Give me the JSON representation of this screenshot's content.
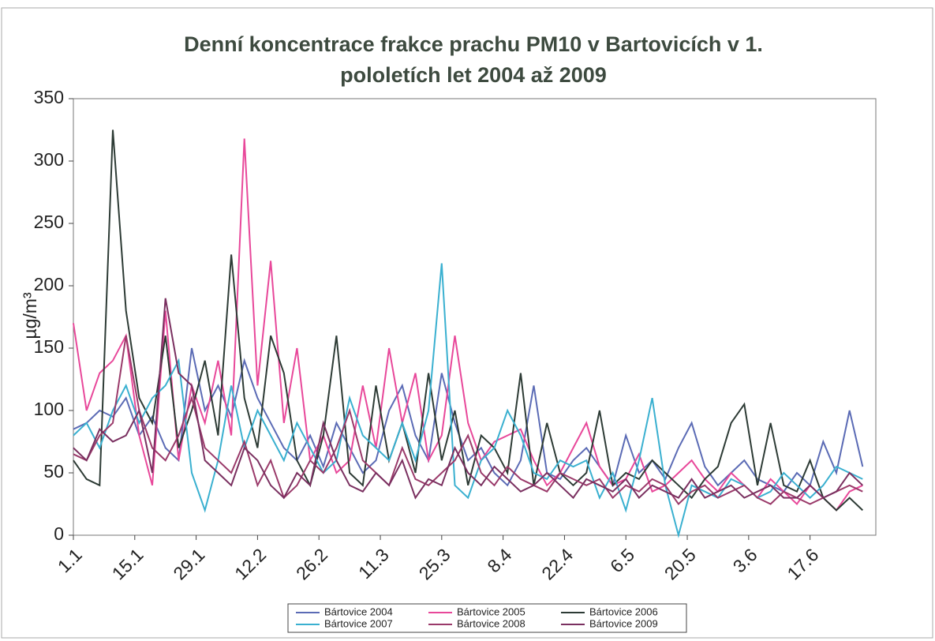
{
  "chart_data": {
    "type": "line",
    "title": [
      "Denní koncentrace frakce prachu PM10 v Bartovicích   v 1.",
      "pololetích let  2004 až 2009"
    ],
    "y_label": "µg/m³",
    "x": [
      1,
      4,
      7,
      10,
      13,
      16,
      19,
      22,
      25,
      28,
      31,
      34,
      37,
      40,
      43,
      46,
      49,
      52,
      55,
      58,
      61,
      64,
      67,
      70,
      73,
      76,
      79,
      82,
      85,
      88,
      91,
      94,
      97,
      100,
      103,
      106,
      109,
      112,
      115,
      118,
      121,
      124,
      127,
      130,
      133,
      136,
      139,
      142,
      145,
      148,
      151,
      154,
      157,
      160,
      163,
      166,
      169,
      172,
      175,
      178,
      181
    ],
    "xlim": [
      1,
      184
    ],
    "xticks": [
      {
        "value": 1,
        "label": "1.1"
      },
      {
        "value": 15,
        "label": "15.1"
      },
      {
        "value": 29,
        "label": "29.1"
      },
      {
        "value": 43,
        "label": "12.2"
      },
      {
        "value": 57,
        "label": "26.2"
      },
      {
        "value": 71,
        "label": "11.3"
      },
      {
        "value": 85,
        "label": "25.3"
      },
      {
        "value": 99,
        "label": "8.4"
      },
      {
        "value": 113,
        "label": "22.4"
      },
      {
        "value": 127,
        "label": "6.5"
      },
      {
        "value": 141,
        "label": "20.5"
      },
      {
        "value": 155,
        "label": "3.6"
      },
      {
        "value": 169,
        "label": "17.6"
      }
    ],
    "ylim": [
      0,
      350
    ],
    "yticks": [
      0,
      50,
      100,
      150,
      200,
      250,
      300,
      350
    ],
    "series": [
      {
        "name": "Bártovice 2004",
        "color": "#5b6bb5",
        "values": [
          85,
          90,
          100,
          95,
          110,
          80,
          95,
          70,
          60,
          150,
          100,
          120,
          95,
          140,
          110,
          90,
          70,
          60,
          80,
          55,
          90,
          70,
          50,
          60,
          100,
          120,
          80,
          60,
          130,
          90,
          60,
          70,
          50,
          40,
          60,
          120,
          50,
          45,
          60,
          70,
          55,
          40,
          80,
          50,
          60,
          45,
          70,
          90,
          55,
          40,
          50,
          60,
          45,
          40,
          35,
          50,
          40,
          75,
          50,
          100,
          55
        ]
      },
      {
        "name": "Bártovice 2005",
        "color": "#e8489a",
        "values": [
          170,
          100,
          130,
          140,
          160,
          80,
          40,
          180,
          60,
          120,
          90,
          140,
          80,
          318,
          120,
          220,
          90,
          150,
          60,
          80,
          50,
          60,
          120,
          70,
          150,
          90,
          130,
          60,
          80,
          160,
          90,
          60,
          75,
          80,
          85,
          60,
          40,
          50,
          70,
          90,
          55,
          40,
          45,
          65,
          35,
          40,
          50,
          60,
          45,
          35,
          50,
          40,
          30,
          45,
          35,
          25,
          40,
          30,
          20,
          35,
          40
        ]
      },
      {
        "name": "Bártovice 2006",
        "color": "#2d3b35",
        "values": [
          60,
          45,
          40,
          325,
          180,
          110,
          90,
          160,
          70,
          100,
          140,
          80,
          225,
          110,
          70,
          160,
          130,
          60,
          40,
          80,
          160,
          50,
          40,
          120,
          60,
          90,
          50,
          130,
          60,
          100,
          40,
          80,
          70,
          50,
          130,
          40,
          90,
          50,
          40,
          50,
          100,
          40,
          50,
          45,
          60,
          50,
          40,
          30,
          45,
          55,
          90,
          105,
          40,
          90,
          40,
          35,
          60,
          30,
          20,
          30,
          20
        ]
      },
      {
        "name": "Bártovice 2007",
        "color": "#3ab0d0",
        "values": [
          80,
          90,
          70,
          100,
          120,
          90,
          110,
          120,
          140,
          50,
          20,
          60,
          120,
          70,
          100,
          80,
          60,
          90,
          70,
          50,
          60,
          110,
          80,
          70,
          60,
          90,
          60,
          100,
          218,
          40,
          30,
          60,
          70,
          100,
          80,
          50,
          45,
          60,
          55,
          60,
          30,
          50,
          20,
          60,
          110,
          40,
          0,
          40,
          35,
          30,
          45,
          40,
          30,
          35,
          50,
          40,
          30,
          40,
          55,
          50,
          45
        ]
      },
      {
        "name": "Bártovice 2008",
        "color": "#9a3a6a",
        "values": [
          65,
          60,
          80,
          90,
          160,
          100,
          70,
          60,
          80,
          110,
          70,
          60,
          50,
          75,
          40,
          60,
          30,
          40,
          60,
          50,
          70,
          100,
          60,
          50,
          40,
          70,
          45,
          40,
          50,
          60,
          80,
          50,
          40,
          55,
          45,
          40,
          35,
          50,
          45,
          40,
          45,
          30,
          40,
          35,
          45,
          40,
          25,
          35,
          40,
          30,
          35,
          40,
          30,
          25,
          35,
          30,
          25,
          30,
          35,
          40,
          35
        ]
      },
      {
        "name": "Bártovice 2009",
        "color": "#7a3060",
        "values": [
          70,
          60,
          85,
          75,
          80,
          100,
          50,
          190,
          130,
          120,
          60,
          50,
          40,
          70,
          60,
          40,
          30,
          50,
          40,
          90,
          60,
          40,
          35,
          50,
          40,
          60,
          30,
          45,
          40,
          70,
          50,
          40,
          55,
          45,
          35,
          40,
          50,
          40,
          30,
          45,
          40,
          35,
          45,
          30,
          40,
          35,
          30,
          45,
          30,
          35,
          40,
          30,
          35,
          40,
          30,
          30,
          40,
          30,
          35,
          50,
          40
        ]
      }
    ]
  }
}
